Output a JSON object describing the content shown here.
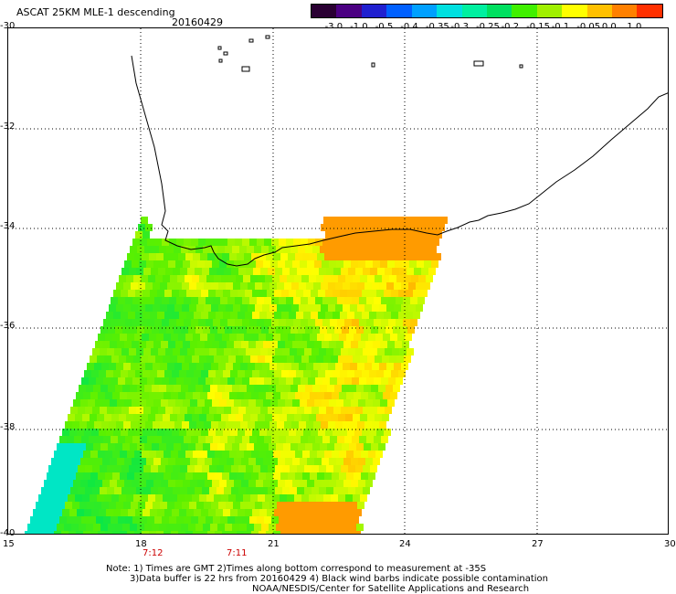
{
  "title": "ASCAT 25KM MLE-1 descending",
  "date": "20160429",
  "colorbar": {
    "labels": [
      "-3.0",
      "-1.0",
      "-0.5",
      "-0.4",
      "-0.35",
      "-0.3",
      "-0.25",
      "-0.2",
      "-0.15",
      "-0.1",
      "-0.05",
      "0.0",
      "1.0"
    ],
    "colors": [
      "#2a0033",
      "#4b0082",
      "#2020d0",
      "#0060ff",
      "#00a0ff",
      "#00e0e0",
      "#00f0a0",
      "#00e060",
      "#40f000",
      "#a0f000",
      "#ffff00",
      "#ffc000",
      "#ff8000",
      "#ff3000"
    ]
  },
  "axes": {
    "x_ticks": [
      "15",
      "18",
      "21",
      "24",
      "27",
      "30"
    ],
    "y_ticks": [
      "-30",
      "-32",
      "-34",
      "-36",
      "-38",
      "-40"
    ]
  },
  "time_labels": [
    "7:12",
    "7:11"
  ],
  "notes": [
    "Note: 1) Times are GMT 2)Times along bottom correspond to measurement at -35S",
    "3)Data buffer is 22 hrs from 20160429 4) Black wind barbs indicate possible contamination",
    "NOAA/NESDIS/Center for Satellite Applications and Research"
  ]
}
